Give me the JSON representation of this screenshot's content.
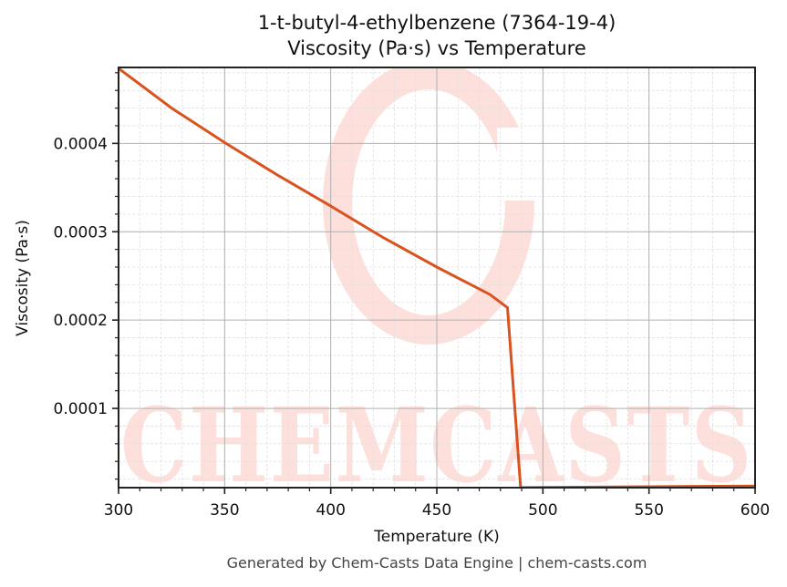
{
  "header": {
    "title_line1": "1-t-butyl-4-ethylbenzene (7364-19-4)",
    "title_line2": "Viscosity (Pa·s) vs Temperature"
  },
  "footer": {
    "text": "Generated by Chem-Casts Data Engine | chem-casts.com"
  },
  "watermark": {
    "text": "CHEMCASTS",
    "color": "#fde0dc"
  },
  "colors": {
    "line": "#d9531e",
    "major_grid": "#b0b0b0",
    "minor_grid": "#e0e0e0",
    "axis": "#222222"
  },
  "chart_data": {
    "type": "line",
    "title": "1-t-butyl-4-ethylbenzene (7364-19-4)\nViscosity (Pa·s) vs Temperature",
    "xlabel": "Temperature (K)",
    "ylabel": "Viscosity (Pa·s)",
    "xlim": [
      300,
      600
    ],
    "ylim": [
      1.03e-05,
      0.000486
    ],
    "x_ticks": [
      300,
      350,
      400,
      450,
      500,
      550,
      600
    ],
    "x_tick_labels": [
      "300",
      "350",
      "400",
      "450",
      "500",
      "550",
      "600"
    ],
    "y_ticks": [
      0.0001,
      0.0002,
      0.0003,
      0.0004
    ],
    "y_tick_labels": [
      "0.0001",
      "0.0002",
      "0.0003",
      "0.0004"
    ],
    "grid": true,
    "minor_grid": true,
    "legend": null,
    "series": [
      {
        "name": "Viscosity",
        "color": "#d9531e",
        "x": [
          300,
          325,
          350,
          375,
          400,
          425,
          450,
          475,
          483.3,
          489.5,
          500,
          550,
          600
        ],
        "y": [
          0.000485,
          0.00044,
          0.000401,
          0.000364,
          0.000329,
          0.000293,
          0.00026,
          0.000229,
          0.000214,
          1.03e-05,
          1.05e-05,
          1.13e-05,
          1.22e-05
        ]
      }
    ]
  }
}
